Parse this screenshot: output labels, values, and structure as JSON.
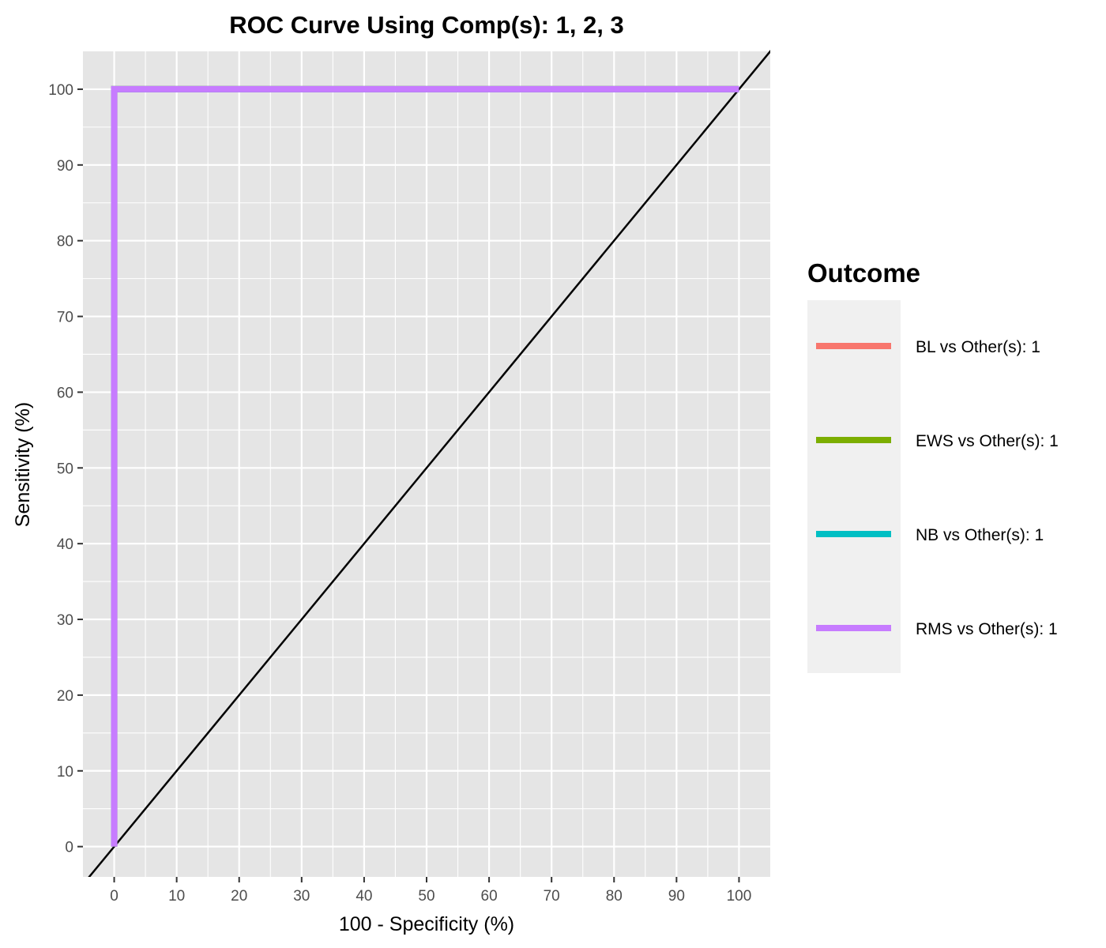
{
  "chart_data": {
    "type": "line",
    "title": "ROC Curve Using Comp(s): 1, 2, 3",
    "xlabel": "100 - Specificity (%)",
    "ylabel": "Sensitivity (%)",
    "xlim": [
      -5,
      105
    ],
    "ylim": [
      -4,
      105
    ],
    "x_ticks": [
      0,
      10,
      20,
      30,
      40,
      50,
      60,
      70,
      80,
      90,
      100
    ],
    "y_ticks": [
      0,
      10,
      20,
      30,
      40,
      50,
      60,
      70,
      80,
      90,
      100
    ],
    "grid": true,
    "legend_title": "Outcome",
    "legend_position": "right",
    "reference_line": {
      "x": [
        -5,
        105
      ],
      "y": [
        -5,
        105
      ],
      "color": "#000000"
    },
    "series": [
      {
        "name": "BL vs Other(s): 1",
        "color": "#F8766D",
        "x": [
          0,
          0,
          100
        ],
        "y": [
          0,
          100,
          100
        ]
      },
      {
        "name": "EWS vs Other(s): 1",
        "color": "#7CAE00",
        "x": [
          0,
          0,
          100
        ],
        "y": [
          0,
          100,
          100
        ]
      },
      {
        "name": "NB vs Other(s): 1",
        "color": "#00BFC4",
        "x": [
          0,
          0,
          100
        ],
        "y": [
          0,
          100,
          100
        ]
      },
      {
        "name": "RMS vs Other(s): 1",
        "color": "#C77CFF",
        "x": [
          0,
          0,
          100
        ],
        "y": [
          0,
          100,
          100
        ]
      }
    ]
  },
  "colors": {
    "panel_background": "#E5E5E5",
    "grid": "#FFFFFF",
    "legend_background": "#F0F0F0"
  }
}
